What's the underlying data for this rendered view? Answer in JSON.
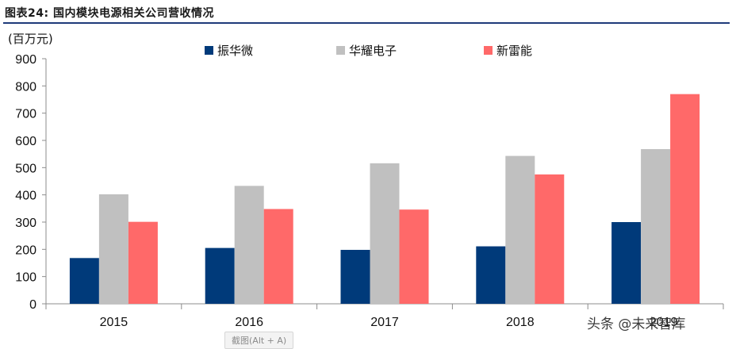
{
  "header": {
    "figure_title": "图表24:  国内模块电源相关公司营收情况"
  },
  "colors": {
    "title_rule": "#1f3a7a",
    "axis": "#8c8c8c",
    "text": "#111111"
  },
  "chart_data": {
    "type": "bar",
    "unit_label": "(百万元)",
    "categories": [
      "2015",
      "2016",
      "2017",
      "2018",
      "2019"
    ],
    "series": [
      {
        "name": "振华微",
        "color": "#003A7A",
        "values": [
          168,
          205,
          198,
          211,
          300
        ]
      },
      {
        "name": "华耀电子",
        "color": "#C0C0C0",
        "values": [
          402,
          433,
          516,
          543,
          568
        ]
      },
      {
        "name": "新雷能",
        "color": "#FF6969",
        "values": [
          301,
          348,
          346,
          475,
          770
        ]
      }
    ],
    "ylim": [
      0,
      900
    ],
    "yticks": [
      "0",
      "100",
      "200",
      "300",
      "400",
      "500",
      "600",
      "700",
      "800",
      "900"
    ],
    "grid": false,
    "legend_position": "top"
  },
  "overlays": {
    "watermark_text": "头条 @未来智库",
    "obscured_category_text": "2019",
    "button_label": "截图(Alt + A)"
  }
}
